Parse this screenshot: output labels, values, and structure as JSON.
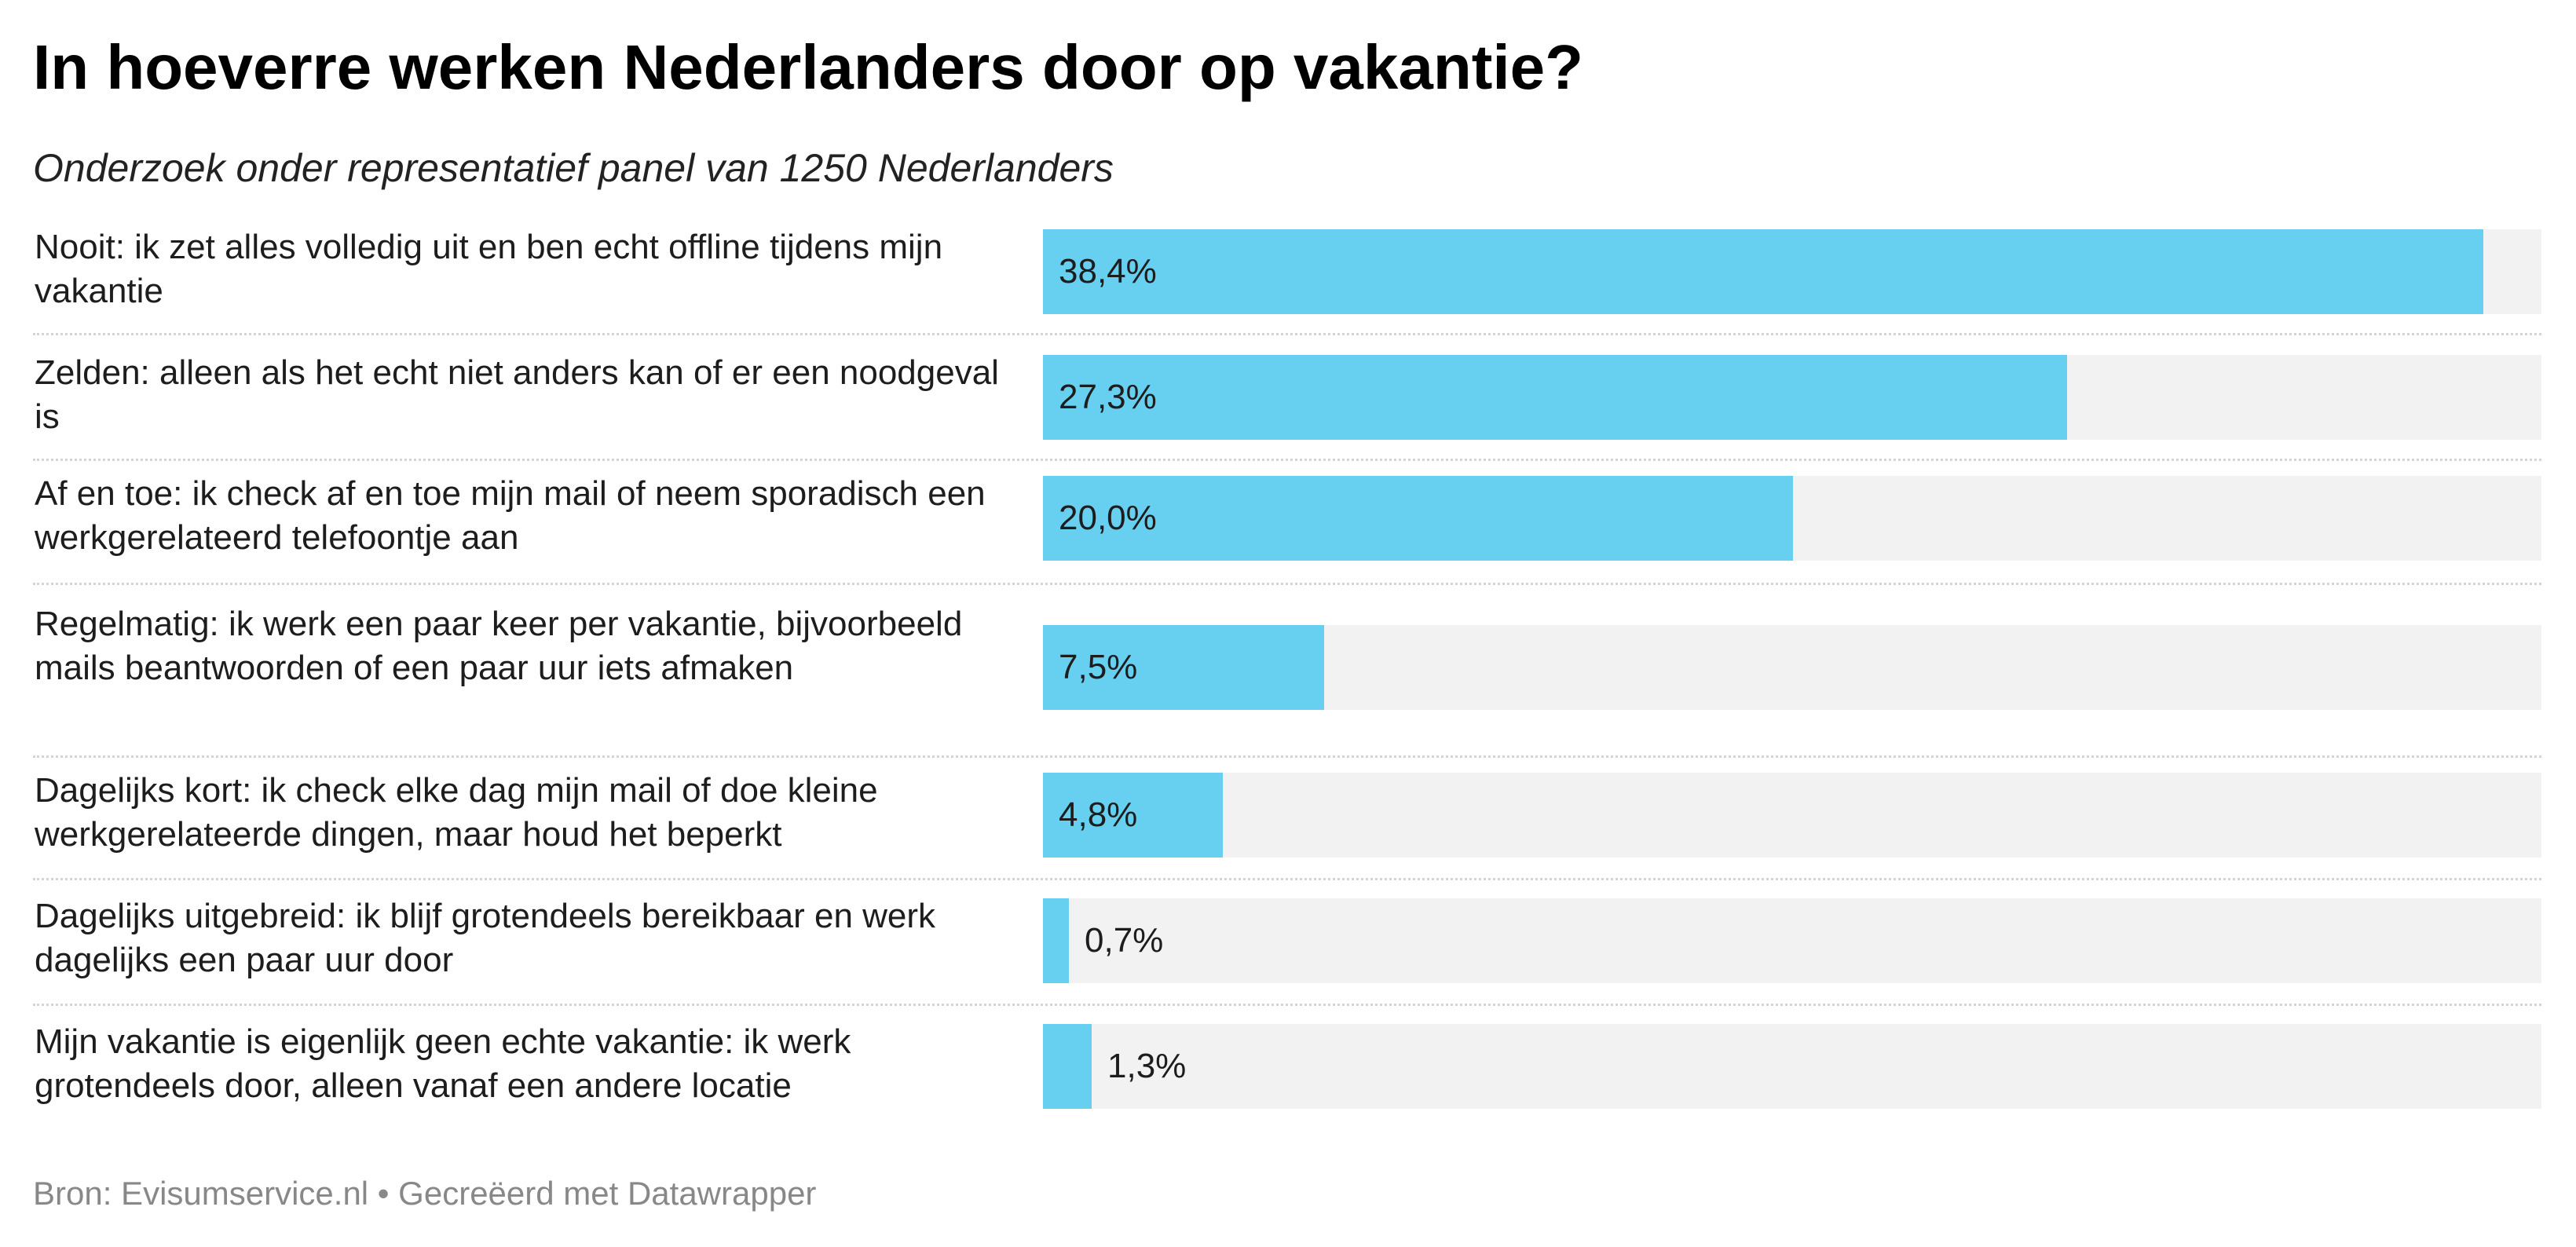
{
  "chart_data": {
    "type": "bar",
    "title": "In hoeverre werken Nederlanders door op vakantie?",
    "subtitle": "Onderzoek onder representatief panel van 1250 Nederlanders",
    "categories": [
      "Nooit: ik zet alles volledig uit en ben echt offline tijdens mijn vakantie",
      "Zelden: alleen als het echt niet anders kan of er een noodgeval is",
      "Af en toe: ik check af en toe mijn mail of neem sporadisch een werkgerelateerd telefoontje aan",
      "Regelmatig: ik werk een paar keer per vakantie, bijvoorbeeld mails beantwoorden of een paar uur iets afmaken",
      "Dagelijks kort: ik check elke dag mijn mail of doe kleine werkgerelateerde dingen, maar houd het beperkt",
      "Dagelijks uitgebreid: ik blijf grotendeels bereikbaar en werk dagelijks een paar uur door",
      "Mijn vakantie is eigenlijk geen echte vakantie: ik werk grotendeels door, alleen vanaf een andere locatie"
    ],
    "values": [
      38.4,
      27.3,
      20.0,
      7.5,
      4.8,
      0.7,
      1.3
    ],
    "value_labels": [
      "38,4%",
      "27,3%",
      "20,0%",
      "7,5%",
      "4,8%",
      "0,7%",
      "1,3%"
    ],
    "xlim": [
      0,
      40
    ],
    "orientation": "horizontal",
    "grid": false,
    "bar_color": "#67cfef",
    "track_color": "#f2f2f2",
    "footer": "Bron: Evisumservice.nl • Gecreëerd met Datawrapper"
  }
}
